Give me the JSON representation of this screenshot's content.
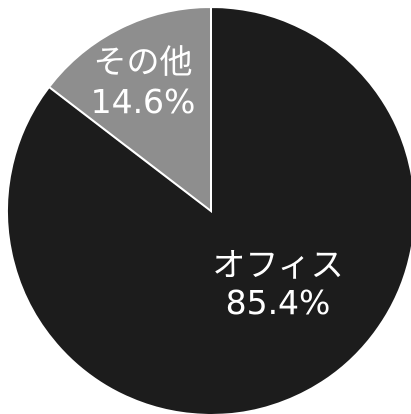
{
  "chart_data": {
    "type": "pie",
    "start_angle_deg": 0,
    "direction": "clockwise",
    "slices": [
      {
        "label": "オフィス",
        "percent_text": "85.4%",
        "value": 85.4,
        "color": "#1c1c1c"
      },
      {
        "label": "その他",
        "percent_text": "14.6%",
        "value": 14.6,
        "color": "#8e8e8e"
      }
    ],
    "slice_edge_color": "#ffffff"
  }
}
